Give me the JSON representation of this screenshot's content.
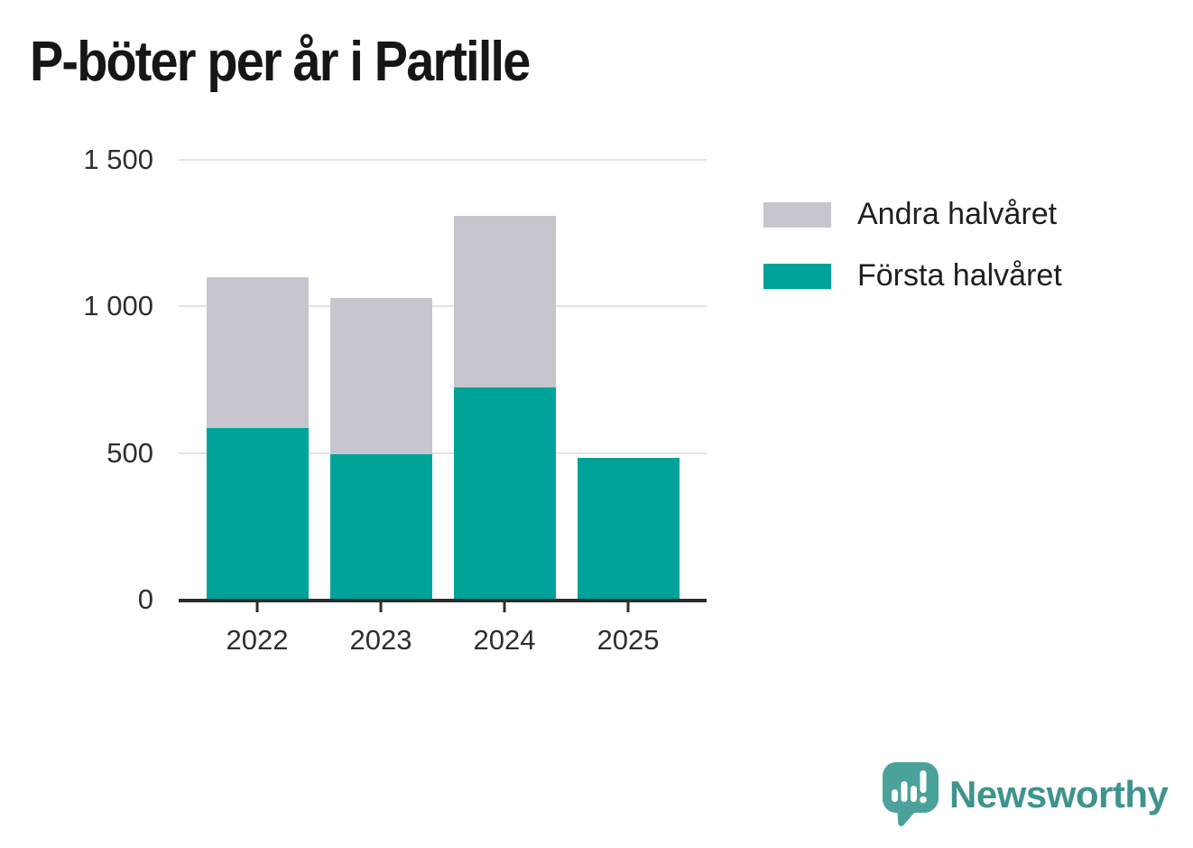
{
  "title": "P-böter per år i Partille",
  "legend": {
    "items": [
      {
        "label": "Andra halvåret",
        "color": "#c7c6ce"
      },
      {
        "label": "Första halvåret",
        "color": "#00a39a"
      }
    ]
  },
  "chart_data": {
    "type": "bar",
    "stacked": true,
    "title": "P-böter per år i Partille",
    "categories": [
      "2022",
      "2023",
      "2024",
      "2025"
    ],
    "series": [
      {
        "name": "Första halvåret",
        "color": "#00a39a",
        "values": [
          585,
          495,
          725,
          485
        ]
      },
      {
        "name": "Andra halvåret",
        "color": "#c7c6ce",
        "values": [
          515,
          535,
          585,
          0
        ]
      }
    ],
    "totals": [
      1100,
      1030,
      1310,
      485
    ],
    "ylim": [
      0,
      1500
    ],
    "y_ticks": [
      0,
      500,
      1000,
      1500
    ],
    "y_tick_labels": [
      "0",
      "500",
      "1 000",
      "1 500"
    ],
    "xlabel": "",
    "ylabel": "",
    "grid": true,
    "legend_position": "right"
  },
  "branding": {
    "name": "Newsworthy",
    "logo_color": "#4aa29b",
    "text_color": "#3e948d"
  },
  "colors": {
    "first_half": "#00a39a",
    "second_half": "#c7c6ce",
    "axis": "#2d2d2d",
    "gridline": "#e3e2e6",
    "label_text": "#2e2e2e"
  }
}
